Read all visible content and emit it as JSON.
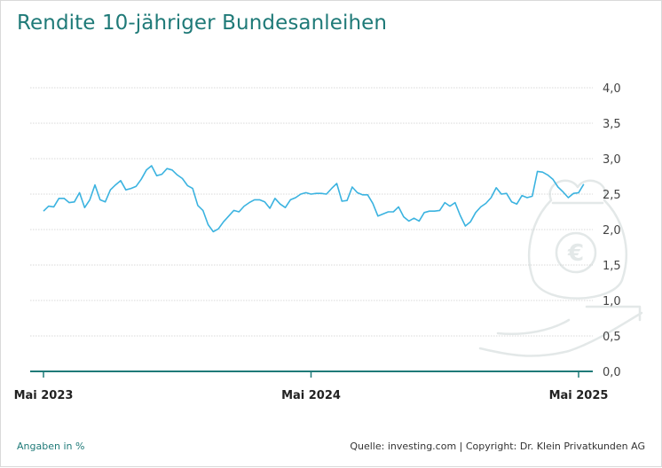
{
  "title": "Rendite 10-jähriger Bundesanleihen",
  "footer": {
    "unit_note": "Angaben in %",
    "source": "Quelle: investing.com | Copyright: Dr. Klein Privatkunden AG"
  },
  "colors": {
    "title": "#1f7a78",
    "line": "#3bb3e0",
    "axis": "#1f7a78",
    "grid": "#cccccc",
    "watermark": "#e6ebeb"
  },
  "watermark_icon": "money-bag-euro-hand-icon",
  "chart_data": {
    "type": "line",
    "title": "Rendite 10-jähriger Bundesanleihen",
    "ylabel": "",
    "xlabel": "",
    "ylim": [
      0,
      4.0
    ],
    "y_ticks": [
      "0,0",
      "0,5",
      "1,0",
      "1,5",
      "2,0",
      "2,5",
      "3,0",
      "3,5",
      "4,0"
    ],
    "x_ticks": [
      {
        "label": "Mai 2023",
        "index": 0
      },
      {
        "label": "Mai 2024",
        "index": 52
      },
      {
        "label": "Mai 2025",
        "index": 104
      }
    ],
    "x_range": [
      0,
      104
    ],
    "grid": true,
    "series": [
      {
        "values": [
          2.26,
          2.33,
          2.32,
          2.44,
          2.44,
          2.38,
          2.39,
          2.52,
          2.31,
          2.42,
          2.63,
          2.42,
          2.39,
          2.56,
          2.63,
          2.69,
          2.56,
          2.58,
          2.61,
          2.71,
          2.84,
          2.9,
          2.76,
          2.78,
          2.86,
          2.84,
          2.77,
          2.72,
          2.62,
          2.58,
          2.34,
          2.27,
          2.07,
          1.97,
          2.01,
          2.11,
          2.19,
          2.27,
          2.25,
          2.33,
          2.38,
          2.42,
          2.42,
          2.39,
          2.3,
          2.44,
          2.36,
          2.31,
          2.42,
          2.45,
          2.5,
          2.52,
          2.5,
          2.51,
          2.51,
          2.5,
          2.58,
          2.65,
          2.4,
          2.41,
          2.6,
          2.52,
          2.49,
          2.49,
          2.37,
          2.19,
          2.22,
          2.25,
          2.25,
          2.32,
          2.18,
          2.12,
          2.16,
          2.12,
          2.24,
          2.26,
          2.26,
          2.27,
          2.38,
          2.33,
          2.38,
          2.2,
          2.05,
          2.11,
          2.24,
          2.32,
          2.37,
          2.45,
          2.59,
          2.5,
          2.51,
          2.39,
          2.36,
          2.48,
          2.45,
          2.47,
          2.82,
          2.81,
          2.77,
          2.71,
          2.6,
          2.53,
          2.45,
          2.51,
          2.52,
          2.64
        ]
      }
    ]
  }
}
